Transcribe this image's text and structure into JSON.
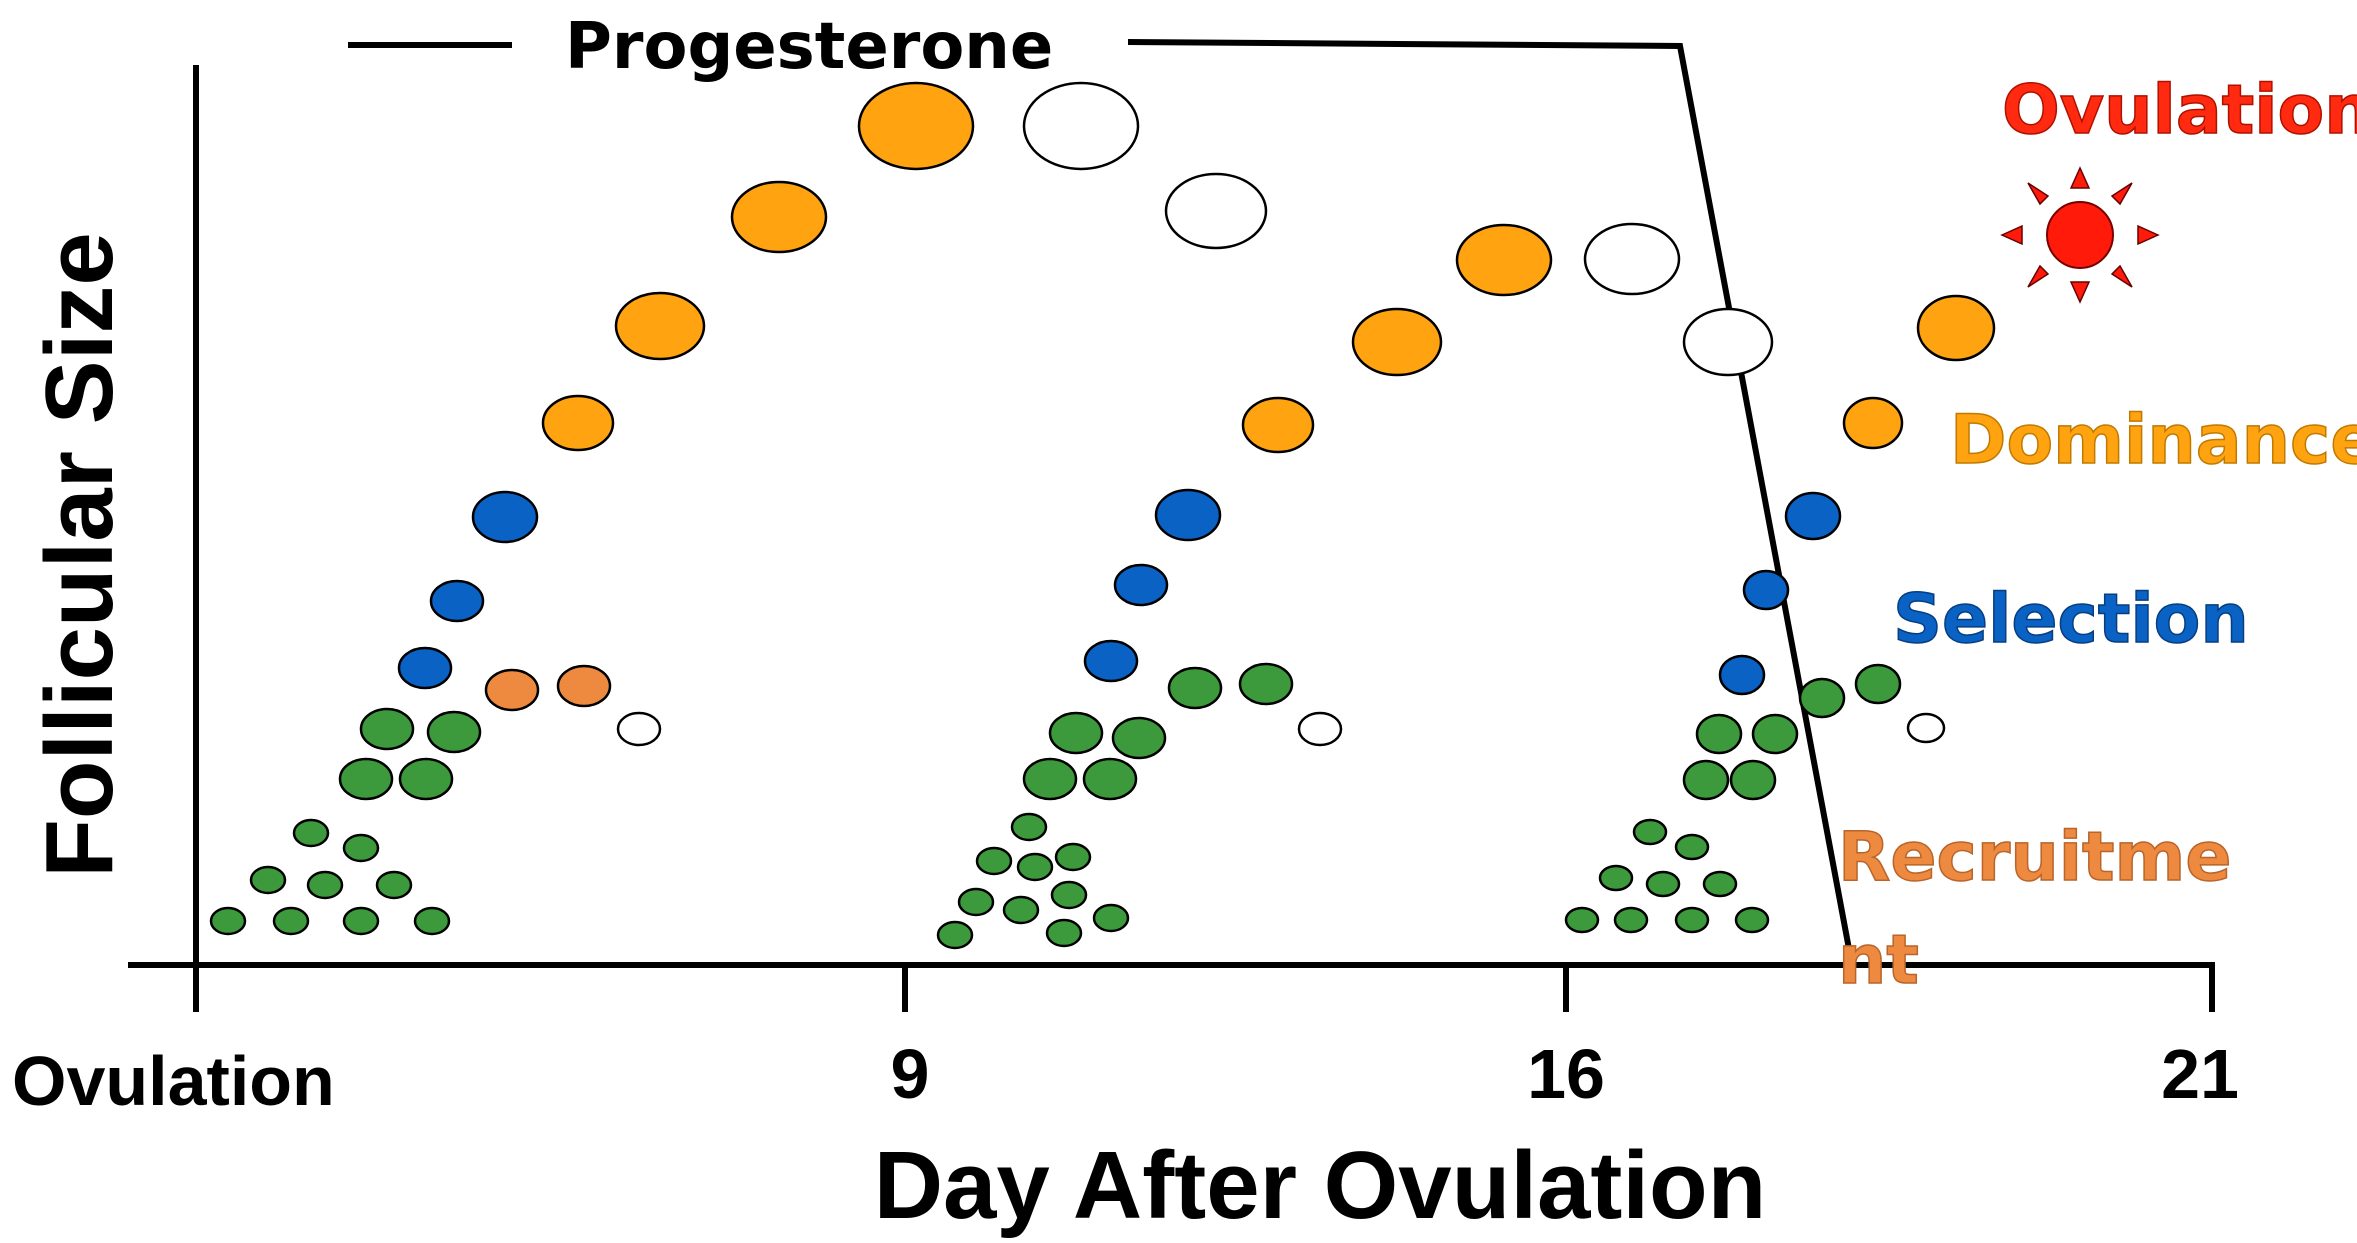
{
  "progesterone_label": "Progesterone",
  "axes": {
    "x_title": "Day After Ovulation",
    "y_title": "Follicular Size",
    "x_ticks": [
      "Ovulation",
      "9",
      "16",
      "21"
    ]
  },
  "stages": {
    "ovulation": "Ovulation",
    "dominance": "Dominance",
    "selection": "Selection",
    "recruitment_line1": "Recruitme",
    "recruitment_line2": "nt"
  },
  "colors": {
    "recruitment_green": "#3c9a3c",
    "selection_blue": "#0a62c4",
    "dominance_orange": "#ffa310",
    "recruit_label_orange": "#ee8a40",
    "atretic_white": "#ffffff",
    "ovulation_red": "#ff1a0a"
  },
  "icons": {
    "ovulation_marker": "sun-burst-icon"
  }
}
